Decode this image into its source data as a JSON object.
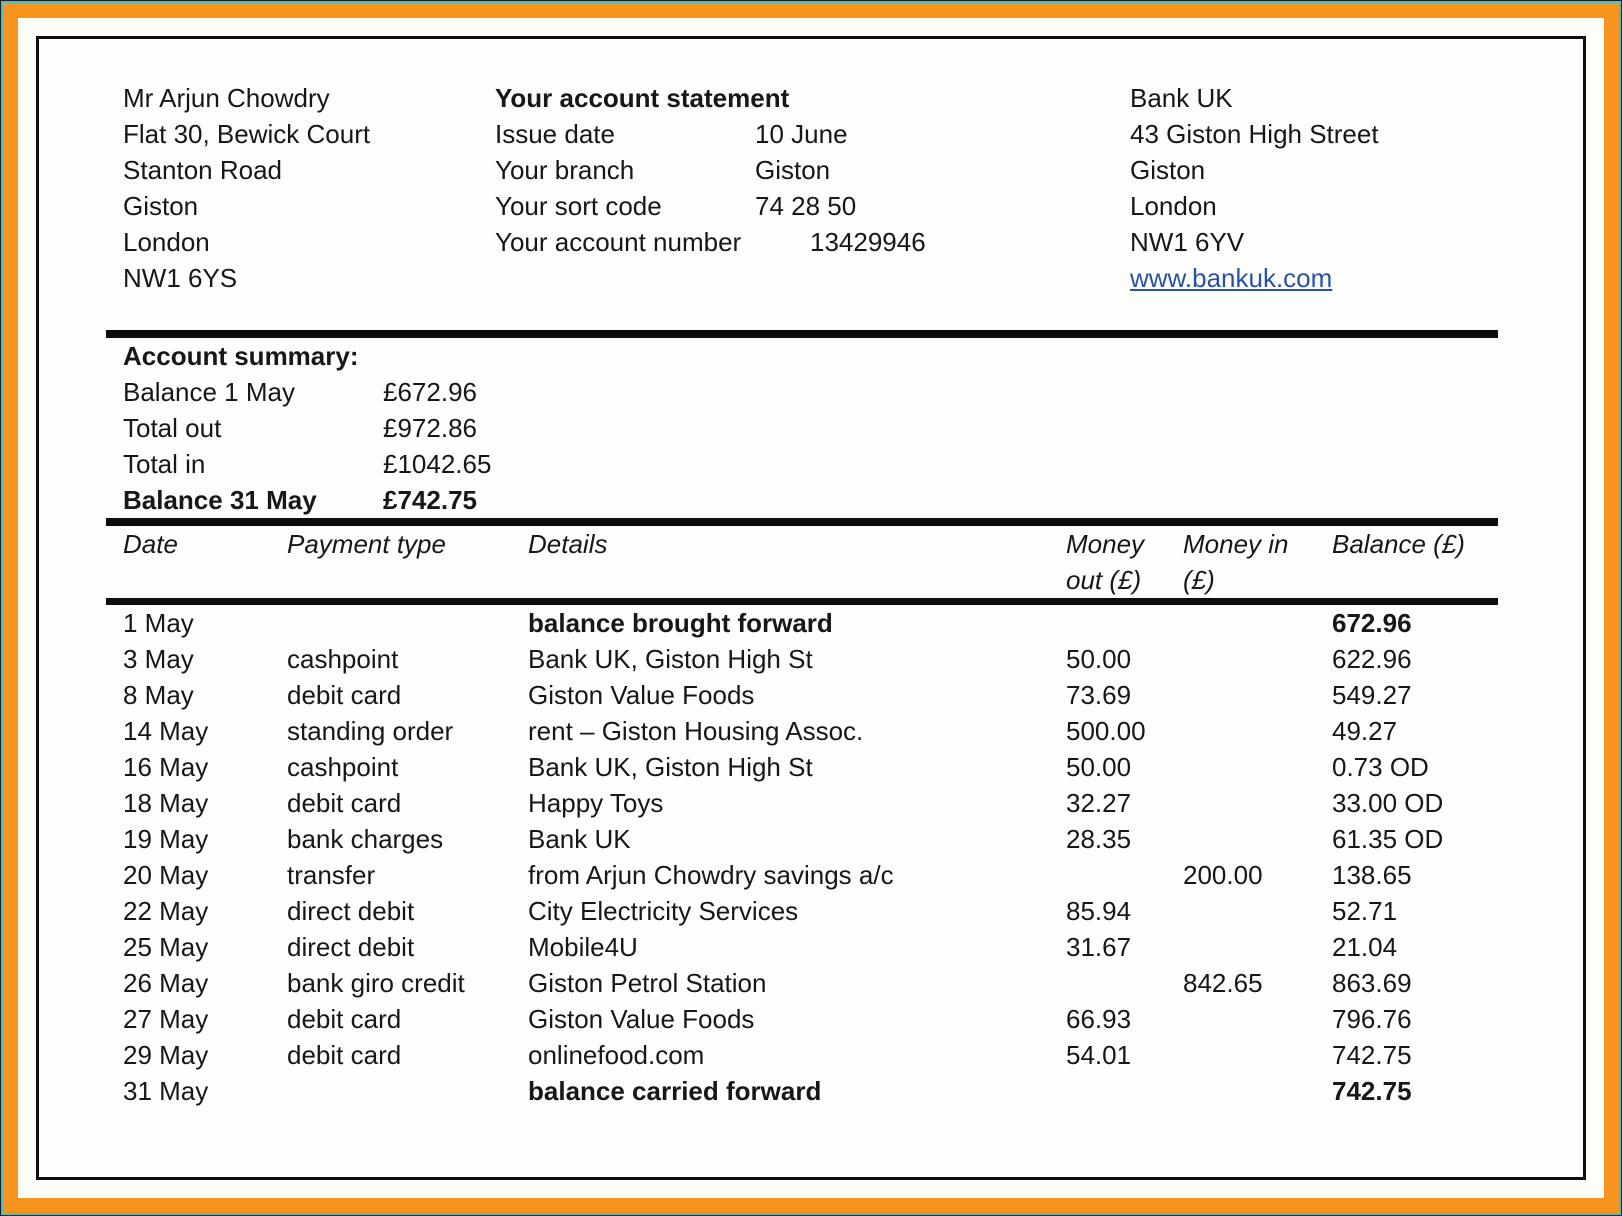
{
  "customer": {
    "lines": [
      "Mr Arjun Chowdry",
      "Flat 30, Bewick Court",
      "Stanton Road",
      "Giston",
      "London",
      "NW1 6YS"
    ]
  },
  "statement_info": {
    "title": "Your account statement",
    "rows": [
      {
        "label": "Issue date",
        "value": "10 June"
      },
      {
        "label": "Your branch",
        "value": "Giston"
      },
      {
        "label": "Your sort code",
        "value": "74 28 50"
      },
      {
        "label": "Your account number",
        "value": "13429946",
        "offset": true
      }
    ]
  },
  "bank": {
    "lines": [
      "Bank UK",
      "43 Giston High Street",
      "Giston",
      "London",
      "NW1 6YV"
    ],
    "website": "www.bankuk.com"
  },
  "summary": {
    "title": "Account summary:",
    "rows": [
      {
        "label": "Balance 1 May",
        "value": "£672.96"
      },
      {
        "label": "Total out",
        "value": "£972.86"
      },
      {
        "label": "Total in",
        "value": "£1042.65"
      },
      {
        "label": "Balance 31 May",
        "value": "£742.75",
        "bold": true
      }
    ]
  },
  "table": {
    "columns": [
      "Date",
      "Payment type",
      "Details",
      "Money out (£)",
      "Money in (£)",
      "Balance (£)"
    ],
    "rows": [
      {
        "date": "1 May",
        "payment_type": "",
        "details": "balance brought forward",
        "money_out": "",
        "money_in": "",
        "balance": "672.96",
        "bold": true
      },
      {
        "date": "3 May",
        "payment_type": "cashpoint",
        "details": "Bank UK, Giston High St",
        "money_out": "50.00",
        "money_in": "",
        "balance": "622.96"
      },
      {
        "date": "8 May",
        "payment_type": "debit card",
        "details": "Giston Value Foods",
        "money_out": "73.69",
        "money_in": "",
        "balance": "549.27"
      },
      {
        "date": "14 May",
        "payment_type": "standing order",
        "details": "rent – Giston Housing Assoc.",
        "money_out": "500.00",
        "money_in": "",
        "balance": "49.27"
      },
      {
        "date": "16 May",
        "payment_type": "cashpoint",
        "details": "Bank UK, Giston High St",
        "money_out": "50.00",
        "money_in": "",
        "balance": "0.73 OD"
      },
      {
        "date": "18 May",
        "payment_type": "debit card",
        "details": "Happy Toys",
        "money_out": "32.27",
        "money_in": "",
        "balance": "33.00 OD"
      },
      {
        "date": "19 May",
        "payment_type": "bank charges",
        "details": "Bank UK",
        "money_out": "28.35",
        "money_in": "",
        "balance": "61.35 OD"
      },
      {
        "date": "20 May",
        "payment_type": "transfer",
        "details": "from Arjun Chowdry savings a/c",
        "money_out": "",
        "money_in": "200.00",
        "balance": "138.65"
      },
      {
        "date": "22 May",
        "payment_type": "direct debit",
        "details": "City Electricity Services",
        "money_out": "85.94",
        "money_in": "",
        "balance": "52.71"
      },
      {
        "date": "25 May",
        "payment_type": "direct debit",
        "details": "Mobile4U",
        "money_out": "31.67",
        "money_in": "",
        "balance": "21.04"
      },
      {
        "date": "26 May",
        "payment_type": "bank giro credit",
        "details": "Giston Petrol Station",
        "money_out": "",
        "money_in": "842.65",
        "balance": "863.69"
      },
      {
        "date": "27 May",
        "payment_type": "debit card",
        "details": "Giston Value Foods",
        "money_out": "66.93",
        "money_in": "",
        "balance": "796.76"
      },
      {
        "date": "29 May",
        "payment_type": "debit card",
        "details": "onlinefood.com",
        "money_out": "54.01",
        "money_in": "",
        "balance": "742.75"
      },
      {
        "date": "31 May",
        "payment_type": "",
        "details": "balance carried forward",
        "money_out": "",
        "money_in": "",
        "balance": "742.75",
        "bold": true
      }
    ]
  },
  "colors": {
    "frame_orange": "#f7941d",
    "frame_teal": "#49bfca",
    "link_blue": "#2b51a3",
    "text": "#171717"
  }
}
